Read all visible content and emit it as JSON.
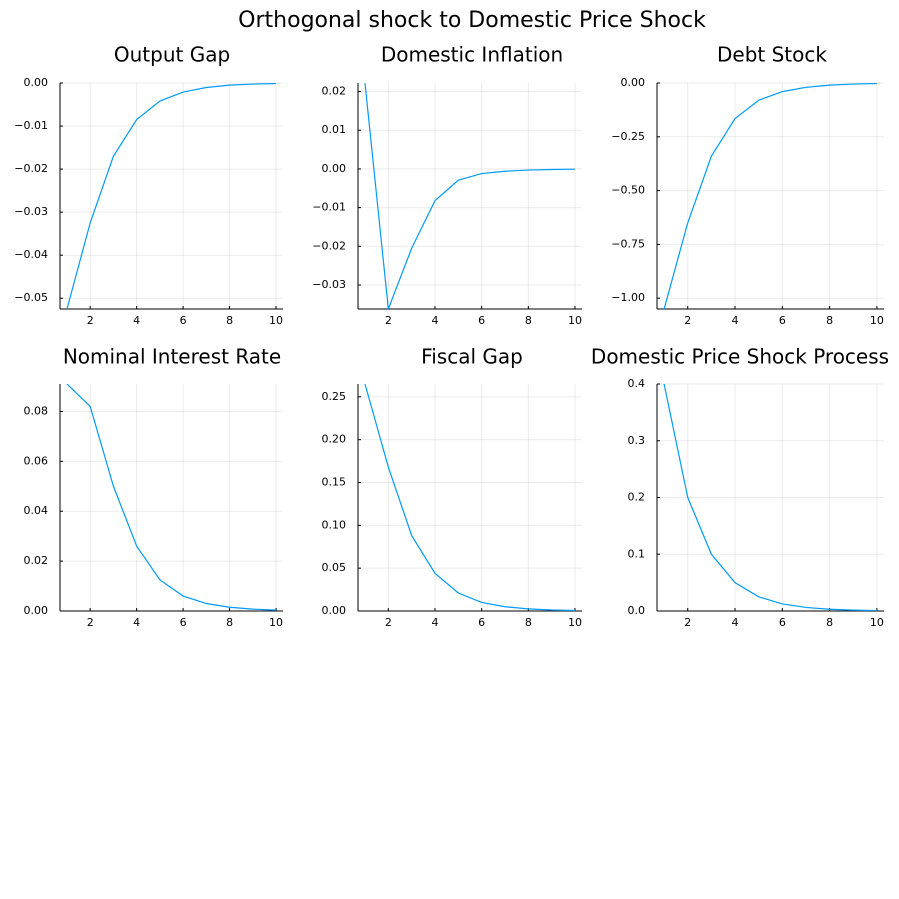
{
  "suptitle": "Orthogonal shock to Domestic Price Shock",
  "colors": {
    "series": "#009AFA",
    "axis": "#000000",
    "grid": "#ebebeb"
  },
  "chart_data": [
    {
      "type": "line",
      "title": "Output Gap",
      "x": [
        1,
        2,
        3,
        4,
        5,
        6,
        7,
        8,
        9,
        10
      ],
      "values": [
        -0.0525,
        -0.0325,
        -0.017,
        -0.0085,
        -0.0042,
        -0.0021,
        -0.00105,
        -0.0005,
        -0.00025,
        -0.00012
      ],
      "xlim": [
        0.7,
        10.3
      ],
      "ylim": [
        -0.0525,
        0.0
      ],
      "xticks": [
        2,
        4,
        6,
        8,
        10
      ],
      "yticks": [
        -0.05,
        -0.04,
        -0.03,
        -0.02,
        -0.01,
        0.0
      ],
      "xtick_labels": [
        "2",
        "4",
        "6",
        "8",
        "10"
      ],
      "ytick_labels": [
        "−0.05",
        "−0.04",
        "−0.03",
        "−0.02",
        "−0.01",
        "0.00"
      ],
      "grid": true
    },
    {
      "type": "line",
      "title": "Domestic Inflation",
      "x": [
        1,
        2,
        3,
        4,
        5,
        6,
        7,
        8,
        9,
        10
      ],
      "values": [
        0.0222,
        -0.0362,
        -0.0205,
        -0.0082,
        -0.0029,
        -0.0012,
        -0.0006,
        -0.0003,
        -0.00015,
        -7e-05
      ],
      "xlim": [
        0.7,
        10.3
      ],
      "ylim": [
        -0.0362,
        0.0222
      ],
      "xticks": [
        2,
        4,
        6,
        8,
        10
      ],
      "yticks": [
        -0.03,
        -0.02,
        -0.01,
        0.0,
        0.01,
        0.02
      ],
      "xtick_labels": [
        "2",
        "4",
        "6",
        "8",
        "10"
      ],
      "ytick_labels": [
        "−0.03",
        "−0.02",
        "−0.01",
        "0.00",
        "0.01",
        "0.02"
      ],
      "grid": true
    },
    {
      "type": "line",
      "title": "Debt Stock",
      "x": [
        1,
        2,
        3,
        4,
        5,
        6,
        7,
        8,
        9,
        10
      ],
      "values": [
        -1.05,
        -0.65,
        -0.34,
        -0.165,
        -0.08,
        -0.04,
        -0.02,
        -0.01,
        -0.005,
        -0.0025
      ],
      "xlim": [
        0.7,
        10.3
      ],
      "ylim": [
        -1.05,
        0.0
      ],
      "xticks": [
        2,
        4,
        6,
        8,
        10
      ],
      "yticks": [
        -1.0,
        -0.75,
        -0.5,
        -0.25,
        0.0
      ],
      "xtick_labels": [
        "2",
        "4",
        "6",
        "8",
        "10"
      ],
      "ytick_labels": [
        "−1.00",
        "−0.75",
        "−0.50",
        "−0.25",
        "0.00"
      ],
      "grid": true
    },
    {
      "type": "line",
      "title": "Nominal Interest Rate",
      "x": [
        1,
        2,
        3,
        4,
        5,
        6,
        7,
        8,
        9,
        10
      ],
      "values": [
        0.091,
        0.082,
        0.05,
        0.026,
        0.0125,
        0.006,
        0.003,
        0.0015,
        0.00075,
        0.00035
      ],
      "xlim": [
        0.7,
        10.3
      ],
      "ylim": [
        0.0,
        0.091
      ],
      "xticks": [
        2,
        4,
        6,
        8,
        10
      ],
      "yticks": [
        0.0,
        0.02,
        0.04,
        0.06,
        0.08
      ],
      "xtick_labels": [
        "2",
        "4",
        "6",
        "8",
        "10"
      ],
      "ytick_labels": [
        "0.00",
        "0.02",
        "0.04",
        "0.06",
        "0.08"
      ],
      "grid": true
    },
    {
      "type": "line",
      "title": "Fiscal Gap",
      "x": [
        1,
        2,
        3,
        4,
        5,
        6,
        7,
        8,
        9,
        10
      ],
      "values": [
        0.265,
        0.168,
        0.088,
        0.044,
        0.021,
        0.01,
        0.005,
        0.0025,
        0.0012,
        0.0006
      ],
      "xlim": [
        0.7,
        10.3
      ],
      "ylim": [
        0.0,
        0.265
      ],
      "xticks": [
        2,
        4,
        6,
        8,
        10
      ],
      "yticks": [
        0.0,
        0.05,
        0.1,
        0.15,
        0.2,
        0.25
      ],
      "xtick_labels": [
        "2",
        "4",
        "6",
        "8",
        "10"
      ],
      "ytick_labels": [
        "0.00",
        "0.05",
        "0.10",
        "0.15",
        "0.20",
        "0.25"
      ],
      "grid": true
    },
    {
      "type": "line",
      "title": "Domestic Price Shock Process",
      "x": [
        1,
        2,
        3,
        4,
        5,
        6,
        7,
        8,
        9,
        10
      ],
      "values": [
        0.4,
        0.2,
        0.1,
        0.05,
        0.025,
        0.0125,
        0.00625,
        0.003125,
        0.0015625,
        0.00078
      ],
      "xlim": [
        0.7,
        10.3
      ],
      "ylim": [
        0.0,
        0.4
      ],
      "xticks": [
        2,
        4,
        6,
        8,
        10
      ],
      "yticks": [
        0.0,
        0.1,
        0.2,
        0.3,
        0.4
      ],
      "xtick_labels": [
        "2",
        "4",
        "6",
        "8",
        "10"
      ],
      "ytick_labels": [
        "0.0",
        "0.1",
        "0.2",
        "0.3",
        "0.4"
      ],
      "grid": true
    }
  ]
}
